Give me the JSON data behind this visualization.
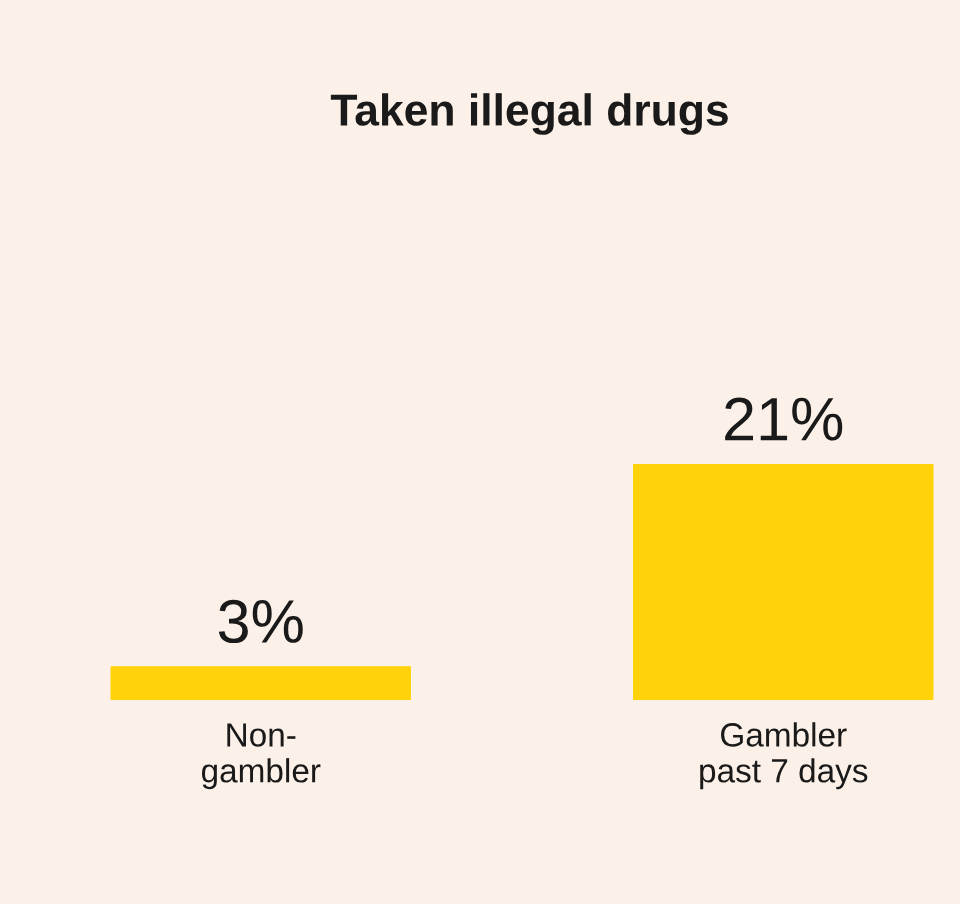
{
  "chart_data": {
    "type": "bar",
    "title": "Taken illegal drugs",
    "categories": [
      "Non-\ngambler",
      "Gambler\npast 7 days"
    ],
    "values": [
      3,
      21
    ],
    "value_labels": [
      "3%",
      "21%"
    ],
    "color": "#ffd20a",
    "grid": false,
    "legend": false,
    "tick_labels": "x"
  }
}
